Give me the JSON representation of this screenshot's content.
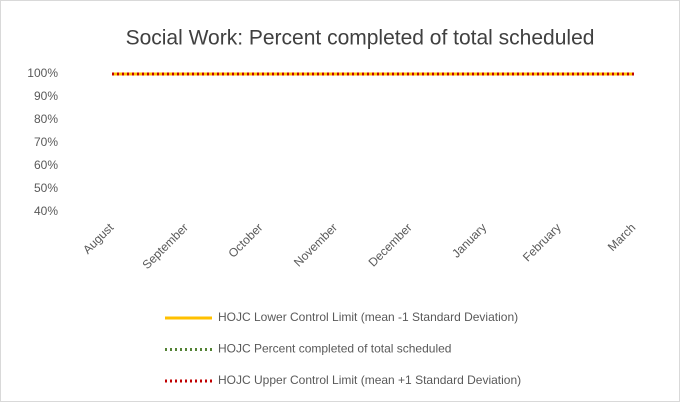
{
  "chart_data": {
    "type": "line",
    "title": "Social Work: Percent completed of total scheduled",
    "categories": [
      "August",
      "September",
      "October",
      "November",
      "December",
      "January",
      "February",
      "March"
    ],
    "series": [
      {
        "name": "HOJC Lower Control Limit (mean -1 Standard Deviation)",
        "color": "#ffc000",
        "style": "solid",
        "values": [
          100,
          100,
          100,
          100,
          100,
          100,
          100,
          100
        ]
      },
      {
        "name": "HOJC Percent completed of total scheduled",
        "color": "#548235",
        "style": "dotted",
        "values": [
          100,
          100,
          100,
          100,
          100,
          100,
          100,
          100
        ]
      },
      {
        "name": "HOJC Upper Control Limit (mean +1 Standard Deviation)",
        "color": "#c00000",
        "style": "dotted",
        "values": [
          100,
          100,
          100,
          100,
          100,
          100,
          100,
          100
        ]
      }
    ],
    "ylim": [
      40,
      100
    ],
    "yticks": [
      {
        "value": 40,
        "label": "40%"
      },
      {
        "value": 50,
        "label": "50%"
      },
      {
        "value": 60,
        "label": "60%"
      },
      {
        "value": 70,
        "label": "70%"
      },
      {
        "value": 80,
        "label": "80%"
      },
      {
        "value": 90,
        "label": "90%"
      },
      {
        "value": 100,
        "label": "100%"
      }
    ],
    "grid": false,
    "legend": "bottom"
  }
}
